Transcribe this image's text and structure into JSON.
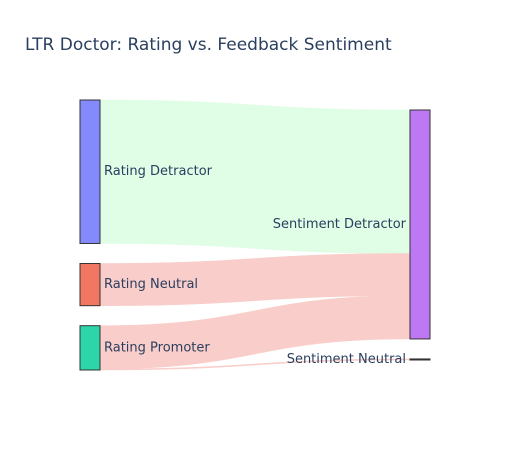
{
  "chart_data": {
    "type": "sankey",
    "title": "LTR Doctor: Rating vs. Feedback Sentiment",
    "nodes": [
      {
        "id": "rd",
        "label": "Rating Detractor",
        "column": 0,
        "color": "#8489fb"
      },
      {
        "id": "rn",
        "label": "Rating Neutral",
        "column": 0,
        "color": "#f27762"
      },
      {
        "id": "rp",
        "label": "Rating Promoter",
        "column": 0,
        "color": "#2dd6a8"
      },
      {
        "id": "sd",
        "label": "Sentiment Detractor",
        "column": 1,
        "color": "#bf78f3"
      },
      {
        "id": "sn",
        "label": "Sentiment Neutral",
        "column": 1,
        "color": "#333333"
      }
    ],
    "links": [
      {
        "source": "rd",
        "target": "sd",
        "value": 68,
        "color": "#e0fde6"
      },
      {
        "source": "rn",
        "target": "sd",
        "value": 20,
        "color": "#f9cdc9"
      },
      {
        "source": "rp",
        "target": "sd",
        "value": 20.5,
        "color": "#f9cdc9"
      },
      {
        "source": "rp",
        "target": "sn",
        "value": 0.5,
        "color": "#f9cdc9"
      }
    ]
  }
}
